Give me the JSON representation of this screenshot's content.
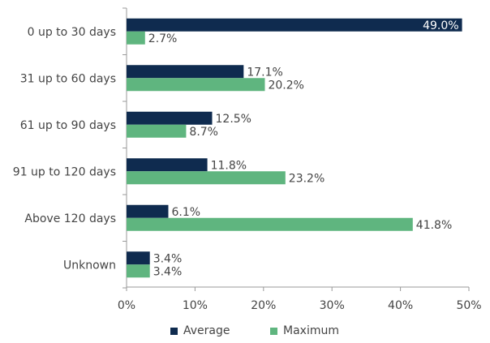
{
  "chart_data": {
    "type": "bar",
    "orientation": "horizontal",
    "categories": [
      "0 up to 30 days",
      "31 up to 60 days",
      "61 up to 90 days",
      "91 up to 120 days",
      "Above 120 days",
      "Unknown"
    ],
    "series": [
      {
        "name": "Average",
        "values": [
          49.0,
          17.1,
          12.5,
          11.8,
          6.1,
          3.4
        ],
        "color": "#0f2b4f"
      },
      {
        "name": "Maximum",
        "values": [
          2.7,
          20.2,
          8.7,
          23.2,
          41.8,
          3.4
        ],
        "color": "#5fb57f"
      }
    ],
    "data_labels": [
      [
        "49.0%",
        "17.1%",
        "12.5%",
        "11.8%",
        "6.1%",
        "3.4%"
      ],
      [
        "2.7%",
        "20.2%",
        "8.7%",
        "23.2%",
        "41.8%",
        "3.4%"
      ]
    ],
    "xlim": [
      0,
      50
    ],
    "xticks": [
      0,
      10,
      20,
      30,
      40,
      50
    ],
    "xtick_labels": [
      "0%",
      "10%",
      "20%",
      "30%",
      "40%",
      "50%"
    ],
    "grid": false,
    "legend_position": "bottom",
    "title": "",
    "xlabel": "",
    "ylabel": ""
  }
}
